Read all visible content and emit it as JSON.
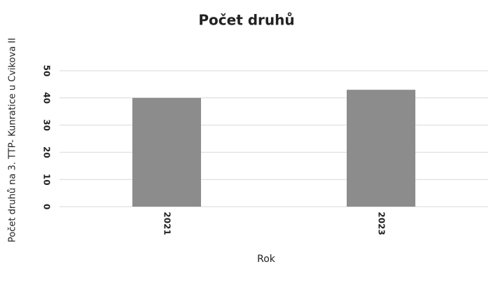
{
  "chart_data": {
    "type": "bar",
    "title": "Počet druhů",
    "ylabel": "Počet druhů na 3. TTP- Kunratice u Cvikova II",
    "xlabel": "Rok",
    "categories": [
      "2021",
      "2023"
    ],
    "values": [
      40,
      43
    ],
    "color": "#8c8c8c",
    "ylim": [
      0,
      50
    ],
    "yticks": [
      0,
      10,
      20,
      30,
      40,
      50
    ],
    "grid": true
  }
}
